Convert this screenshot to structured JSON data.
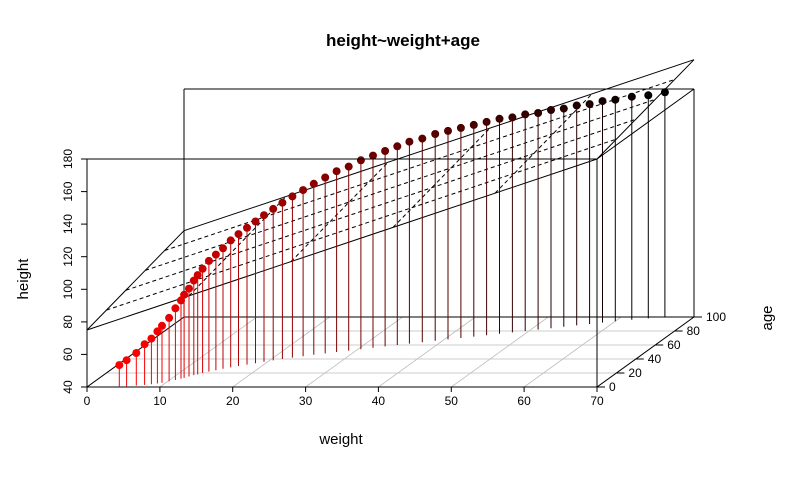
{
  "chart_data": {
    "type": "scatter3d",
    "title": "height~weight+age",
    "xlabel": "weight",
    "ylabel": "age",
    "zlabel": "height",
    "xlim": [
      0,
      70
    ],
    "ylim": [
      0,
      100
    ],
    "zlim": [
      40,
      180
    ],
    "x_ticks": [
      0,
      10,
      20,
      30,
      40,
      50,
      60,
      70
    ],
    "y_ticks": [
      0,
      20,
      40,
      60,
      80,
      100
    ],
    "z_ticks": [
      40,
      60,
      80,
      100,
      120,
      140,
      160,
      180
    ],
    "grid": true,
    "drop_lines": true,
    "regression_plane": {
      "intercept": 75,
      "weight_coef": 1.5,
      "age_coef": 0.18
    },
    "color_low": "#ff0000",
    "color_high": "#000000",
    "point_color": "age",
    "points": [
      {
        "weight": 4.3,
        "age": 1,
        "height": 53
      },
      {
        "weight": 5.3,
        "age": 1,
        "height": 56
      },
      {
        "weight": 6.5,
        "age": 2,
        "height": 60
      },
      {
        "weight": 7.5,
        "age": 3,
        "height": 65
      },
      {
        "weight": 8.3,
        "age": 4,
        "height": 68
      },
      {
        "weight": 9.0,
        "age": 5,
        "height": 72
      },
      {
        "weight": 9.5,
        "age": 6,
        "height": 75
      },
      {
        "weight": 10.2,
        "age": 8,
        "height": 79
      },
      {
        "weight": 10.8,
        "age": 10,
        "height": 84
      },
      {
        "weight": 11.3,
        "age": 12,
        "height": 88
      },
      {
        "weight": 11.6,
        "age": 13,
        "height": 91
      },
      {
        "weight": 12.0,
        "age": 15,
        "height": 94
      },
      {
        "weight": 12.4,
        "age": 17,
        "height": 98
      },
      {
        "weight": 12.8,
        "age": 18,
        "height": 101
      },
      {
        "weight": 13.2,
        "age": 20,
        "height": 104
      },
      {
        "weight": 13.8,
        "age": 22,
        "height": 108
      },
      {
        "weight": 14.5,
        "age": 24,
        "height": 111
      },
      {
        "weight": 15.2,
        "age": 26,
        "height": 114
      },
      {
        "weight": 16.0,
        "age": 28,
        "height": 118
      },
      {
        "weight": 16.8,
        "age": 30,
        "height": 121
      },
      {
        "weight": 17.7,
        "age": 32,
        "height": 124
      },
      {
        "weight": 18.6,
        "age": 34,
        "height": 127
      },
      {
        "weight": 19.5,
        "age": 36,
        "height": 130
      },
      {
        "weight": 20.5,
        "age": 38,
        "height": 133
      },
      {
        "weight": 21.5,
        "age": 40,
        "height": 136
      },
      {
        "weight": 22.6,
        "age": 42,
        "height": 139
      },
      {
        "weight": 23.8,
        "age": 44,
        "height": 142
      },
      {
        "weight": 25.0,
        "age": 46,
        "height": 145
      },
      {
        "weight": 26.3,
        "age": 48,
        "height": 148
      },
      {
        "weight": 27.6,
        "age": 50,
        "height": 151
      },
      {
        "weight": 29.0,
        "age": 52,
        "height": 153
      },
      {
        "weight": 30.4,
        "age": 54,
        "height": 156
      },
      {
        "weight": 31.8,
        "age": 56,
        "height": 158
      },
      {
        "weight": 33.2,
        "age": 58,
        "height": 160
      },
      {
        "weight": 34.6,
        "age": 60,
        "height": 162
      },
      {
        "weight": 36.0,
        "age": 62,
        "height": 164
      },
      {
        "weight": 37.5,
        "age": 64,
        "height": 165
      },
      {
        "weight": 39.0,
        "age": 66,
        "height": 167
      },
      {
        "weight": 40.5,
        "age": 68,
        "height": 168
      },
      {
        "weight": 42.0,
        "age": 70,
        "height": 169
      },
      {
        "weight": 43.5,
        "age": 72,
        "height": 170
      },
      {
        "weight": 45.0,
        "age": 74,
        "height": 171
      },
      {
        "weight": 46.5,
        "age": 76,
        "height": 172
      },
      {
        "weight": 48.0,
        "age": 78,
        "height": 172
      },
      {
        "weight": 49.5,
        "age": 80,
        "height": 173
      },
      {
        "weight": 51.0,
        "age": 82,
        "height": 173
      },
      {
        "weight": 52.5,
        "age": 84,
        "height": 174
      },
      {
        "weight": 54.0,
        "age": 86,
        "height": 174
      },
      {
        "weight": 55.5,
        "age": 88,
        "height": 175
      },
      {
        "weight": 57.0,
        "age": 90,
        "height": 175
      },
      {
        "weight": 58.5,
        "age": 92,
        "height": 176
      },
      {
        "weight": 60.0,
        "age": 94,
        "height": 176
      },
      {
        "weight": 62.0,
        "age": 96,
        "height": 177
      },
      {
        "weight": 64.0,
        "age": 98,
        "height": 177
      },
      {
        "weight": 66.0,
        "age": 100,
        "height": 178
      }
    ]
  }
}
